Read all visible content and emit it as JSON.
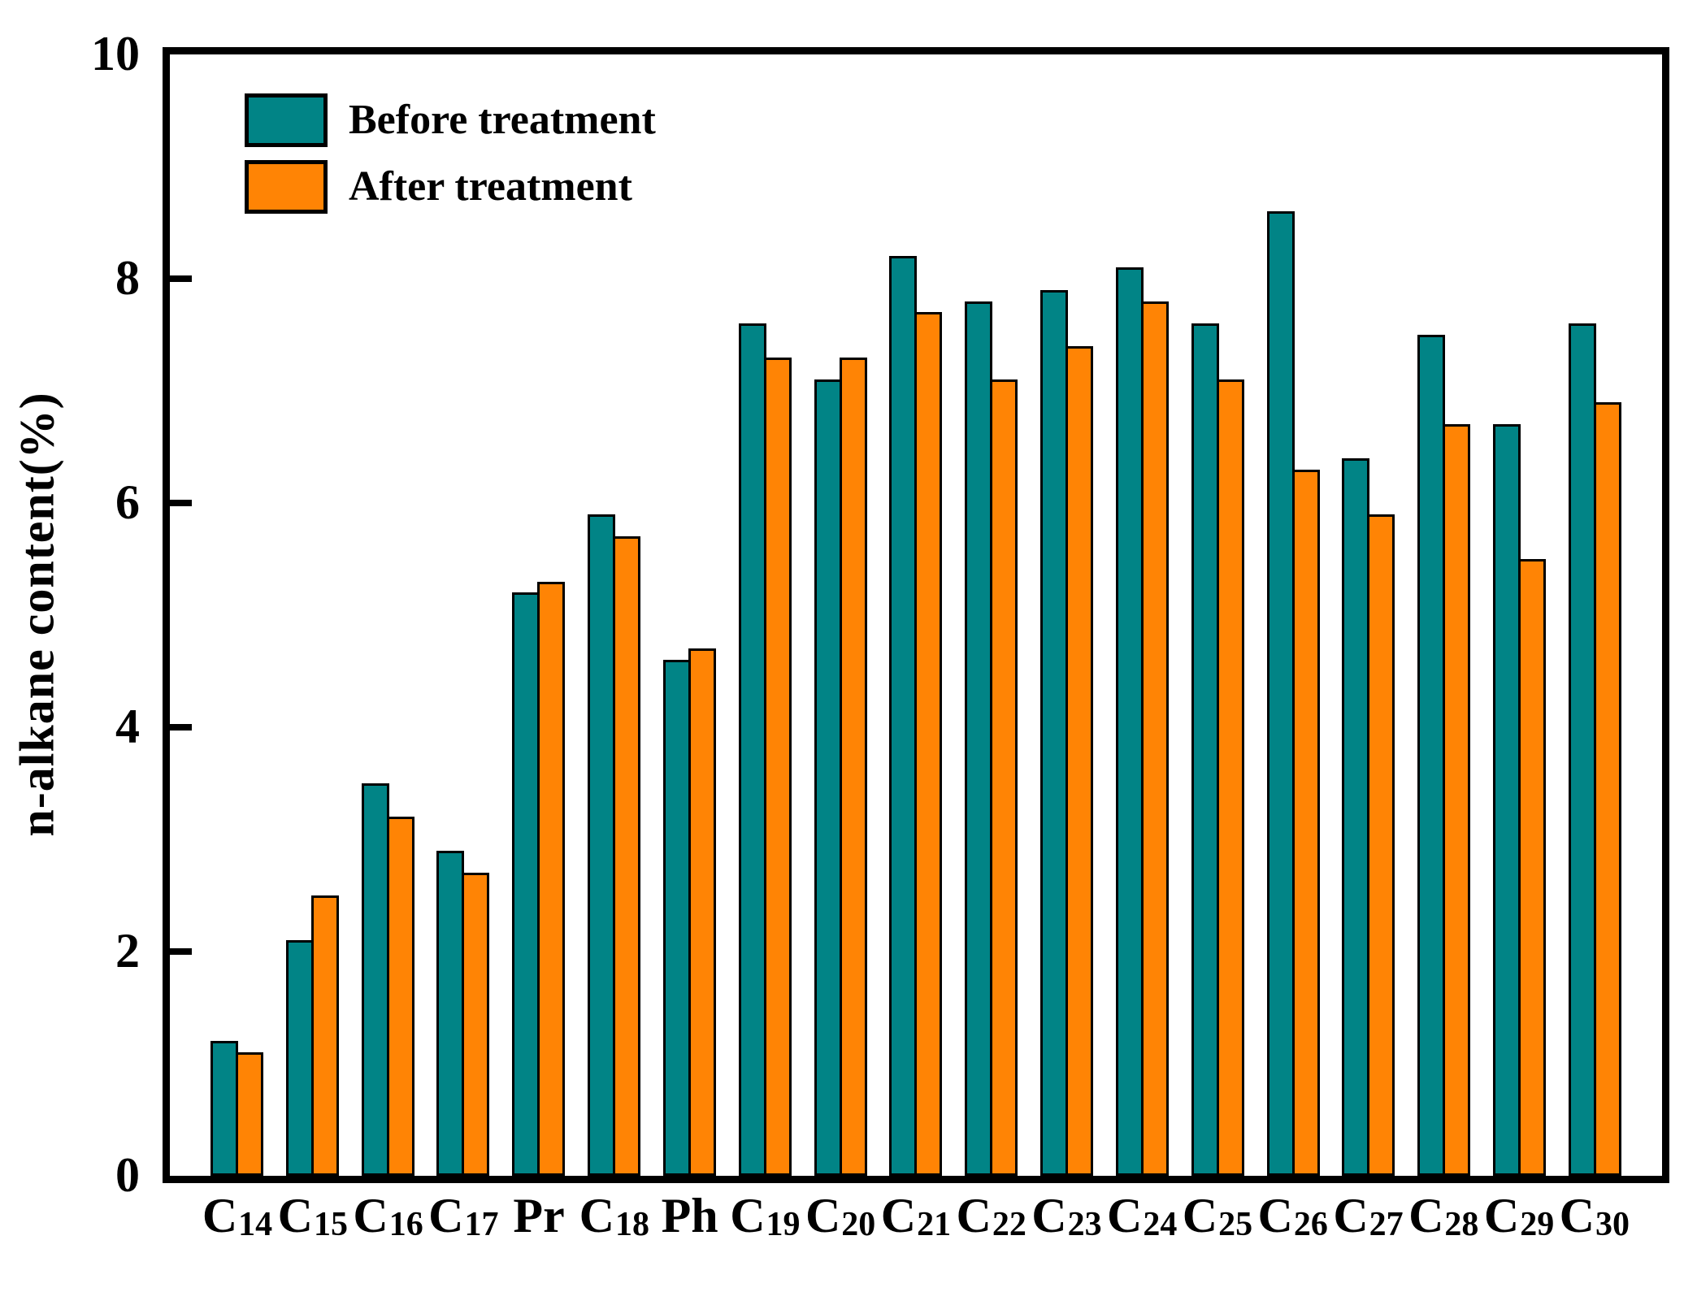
{
  "chart_data": {
    "type": "bar",
    "title": "",
    "xlabel": "",
    "ylabel": "n-alkane content(%)",
    "ylim": [
      0,
      10
    ],
    "yticks": [
      0,
      2,
      4,
      6,
      8,
      10
    ],
    "grid": false,
    "legend_position": "top-left",
    "categories": [
      {
        "base": "C",
        "sub": "14"
      },
      {
        "base": "C",
        "sub": "15"
      },
      {
        "base": "C",
        "sub": "16"
      },
      {
        "base": "C",
        "sub": "17"
      },
      {
        "base": "Pr",
        "sub": ""
      },
      {
        "base": "C",
        "sub": "18"
      },
      {
        "base": "Ph",
        "sub": ""
      },
      {
        "base": "C",
        "sub": "19"
      },
      {
        "base": "C",
        "sub": "20"
      },
      {
        "base": "C",
        "sub": "21"
      },
      {
        "base": "C",
        "sub": "22"
      },
      {
        "base": "C",
        "sub": "23"
      },
      {
        "base": "C",
        "sub": "24"
      },
      {
        "base": "C",
        "sub": "25"
      },
      {
        "base": "C",
        "sub": "26"
      },
      {
        "base": "C",
        "sub": "27"
      },
      {
        "base": "C",
        "sub": "28"
      },
      {
        "base": "C",
        "sub": "29"
      },
      {
        "base": "C",
        "sub": "30"
      }
    ],
    "series": [
      {
        "name": "Before treatment",
        "color": "#018486",
        "values": [
          1.2,
          2.1,
          3.5,
          2.9,
          5.2,
          5.9,
          4.6,
          7.6,
          7.1,
          8.2,
          7.8,
          7.9,
          8.1,
          7.6,
          8.6,
          6.4,
          7.5,
          6.7,
          7.6
        ]
      },
      {
        "name": "After treatment",
        "color": "#FF8405",
        "values": [
          1.1,
          2.5,
          3.2,
          2.7,
          5.3,
          5.7,
          4.7,
          7.3,
          7.3,
          7.7,
          7.1,
          7.4,
          7.8,
          7.1,
          6.3,
          5.9,
          6.7,
          5.5,
          6.9
        ]
      }
    ],
    "colors": {
      "axis": "#000000",
      "background": "#FFFFFF"
    }
  }
}
